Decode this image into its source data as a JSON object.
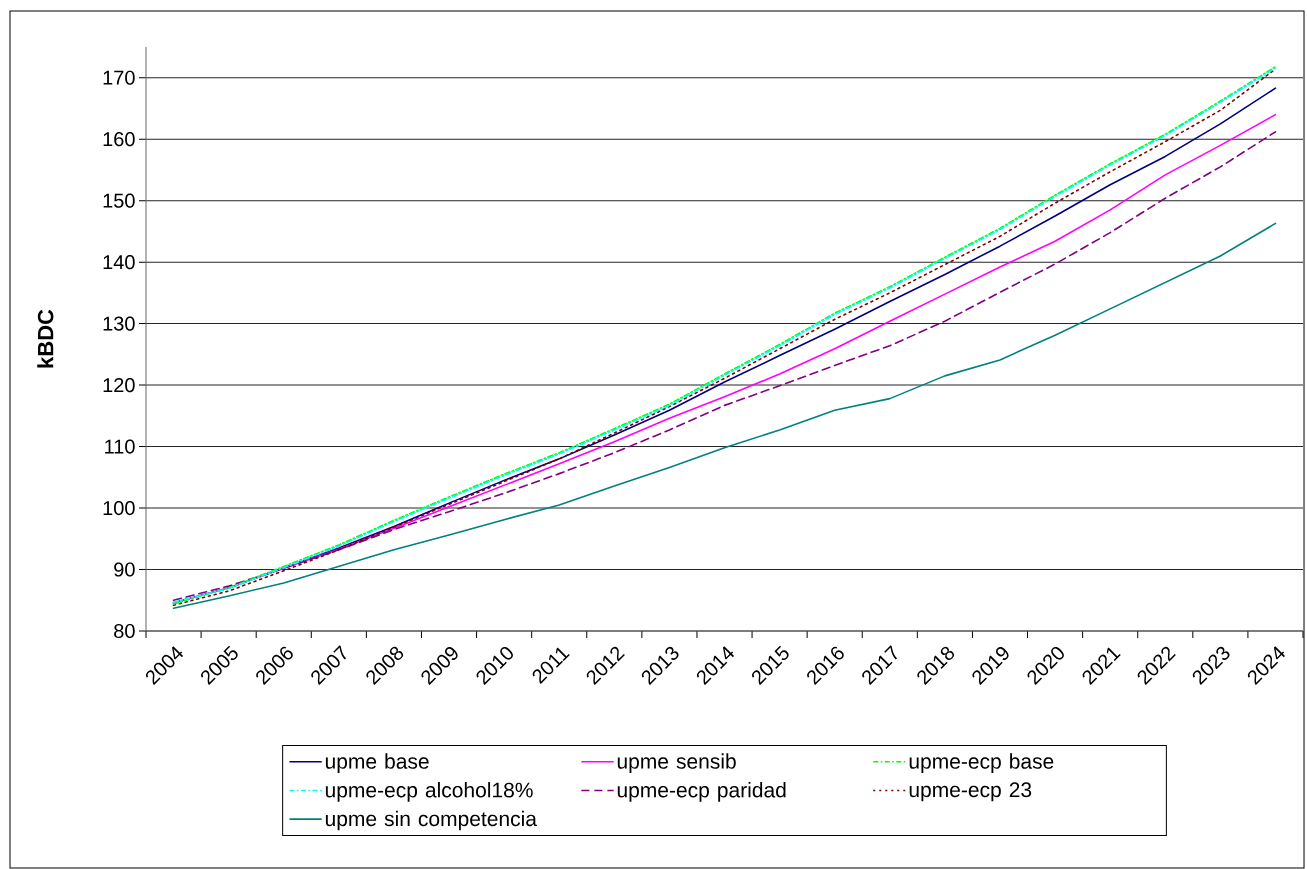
{
  "chart_data": {
    "type": "line",
    "ylabel": "kBDC",
    "categories": [
      "2004",
      "2005",
      "2006",
      "2007",
      "2008",
      "2009",
      "2010",
      "2011",
      "2012",
      "2013",
      "2014",
      "2015",
      "2016",
      "2017",
      "2018",
      "2019",
      "2020",
      "2021",
      "2022",
      "2023",
      "2024"
    ],
    "ylim": [
      80,
      175
    ],
    "yticks": [
      80,
      90,
      100,
      110,
      120,
      130,
      140,
      150,
      160,
      170
    ],
    "grid": "y",
    "legend": "bottom",
    "series": [
      {
        "name": "upme base",
        "color": "#000080",
        "line_style": "solid",
        "values": [
          84.6,
          87.0,
          90.3,
          93.5,
          97.0,
          100.8,
          104.5,
          108.0,
          111.9,
          115.9,
          120.5,
          124.8,
          129.1,
          133.6,
          138.0,
          142.6,
          147.5,
          152.6,
          157.2,
          162.5,
          168.3
        ]
      },
      {
        "name": "upme sensib",
        "color": "#ff00ff",
        "line_style": "solid",
        "values": [
          84.6,
          87.0,
          90.2,
          93.3,
          96.7,
          100.2,
          103.7,
          107.2,
          110.8,
          114.6,
          118.1,
          121.8,
          125.9,
          130.4,
          134.8,
          139.2,
          143.4,
          148.5,
          154.2,
          159.0,
          164.0
        ]
      },
      {
        "name": "upme-ecp base",
        "color": "#00ff00",
        "line_style": "dashdot",
        "values": [
          84.4,
          87.0,
          90.5,
          94.0,
          98.0,
          101.8,
          105.5,
          109.0,
          112.9,
          116.9,
          121.8,
          126.6,
          131.7,
          136.0,
          140.8,
          145.5,
          150.9,
          156.0,
          160.8,
          166.2,
          171.8
        ]
      },
      {
        "name": "upme-ecp alcohol18%",
        "color": "#00ffff",
        "line_style": "dashdot",
        "values": [
          84.7,
          86.9,
          90.3,
          93.8,
          97.8,
          101.6,
          105.3,
          108.8,
          112.7,
          116.7,
          121.6,
          126.4,
          131.5,
          135.8,
          140.6,
          145.3,
          150.7,
          155.8,
          160.6,
          166.0,
          171.6
        ]
      },
      {
        "name": "upme-ecp paridad",
        "color": "#800080",
        "line_style": "dashed",
        "values": [
          85.0,
          87.3,
          90.2,
          93.2,
          96.5,
          99.4,
          102.4,
          105.6,
          109.0,
          112.7,
          116.7,
          119.9,
          123.2,
          126.4,
          130.4,
          135.1,
          139.7,
          144.8,
          150.4,
          155.5,
          161.2
        ]
      },
      {
        "name": "upme-ecp 23",
        "color": "#800000",
        "line_style": "dotted",
        "values": [
          84.2,
          86.5,
          89.8,
          93.2,
          96.9,
          100.6,
          104.3,
          108.0,
          112.2,
          116.5,
          121.1,
          125.9,
          130.7,
          135.0,
          139.6,
          144.2,
          149.6,
          154.7,
          159.6,
          164.7,
          171.4
        ]
      },
      {
        "name": "upme sin competencia",
        "color": "#008080",
        "line_style": "solid",
        "values": [
          83.7,
          85.7,
          87.8,
          90.5,
          93.2,
          95.6,
          98.1,
          100.5,
          103.6,
          106.6,
          109.8,
          112.7,
          115.9,
          117.8,
          121.5,
          124.1,
          128.1,
          132.4,
          136.7,
          141.0,
          146.3
        ]
      }
    ]
  }
}
